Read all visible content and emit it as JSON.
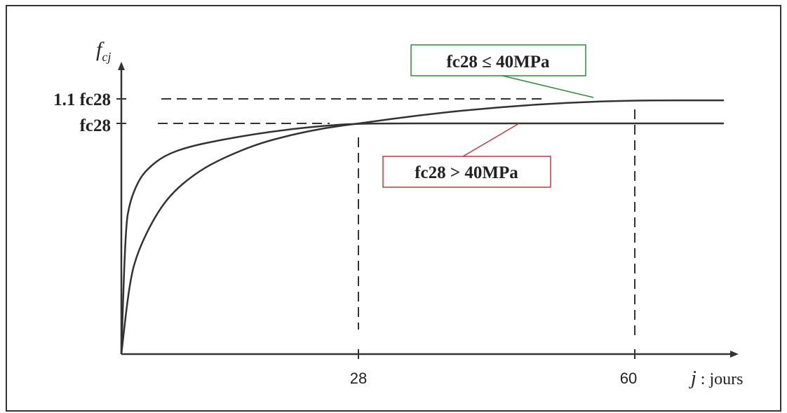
{
  "chart_data": {
    "type": "line",
    "ylabel_main": "f",
    "ylabel_sub": "cj",
    "xlabel_italic": "j",
    "xlabel_rest": " : jours",
    "ytick_labels": [
      "1.1 fc28",
      "fc28"
    ],
    "xtick_labels": [
      "28",
      "60"
    ],
    "series": [
      {
        "name": "fc28 > 40MPa",
        "color": "#333333",
        "points": [
          [
            0,
            0
          ],
          [
            0.5,
            0.55
          ],
          [
            1,
            0.66
          ],
          [
            2,
            0.75
          ],
          [
            3,
            0.8
          ],
          [
            5,
            0.86
          ],
          [
            8,
            0.9
          ],
          [
            12,
            0.93
          ],
          [
            16,
            0.955
          ],
          [
            20,
            0.975
          ],
          [
            24,
            0.99
          ],
          [
            28,
            1.0
          ],
          [
            40,
            1.0
          ],
          [
            75,
            1.0
          ]
        ]
      },
      {
        "name": "fc28 ≤ 40MPa",
        "color": "#333333",
        "points": [
          [
            0,
            0
          ],
          [
            1,
            0.32
          ],
          [
            2,
            0.45
          ],
          [
            4,
            0.6
          ],
          [
            6,
            0.7
          ],
          [
            9,
            0.79
          ],
          [
            12,
            0.85
          ],
          [
            16,
            0.91
          ],
          [
            20,
            0.95
          ],
          [
            24,
            0.98
          ],
          [
            28,
            1.0
          ],
          [
            36,
            1.04
          ],
          [
            44,
            1.07
          ],
          [
            52,
            1.09
          ],
          [
            60,
            1.1
          ],
          [
            75,
            1.1
          ]
        ]
      }
    ],
    "reference_lines": {
      "y_dashed": [
        1.1,
        1.0
      ],
      "x_dashed": [
        28,
        60
      ]
    },
    "annotations": [
      {
        "label": "fc28 ≤ 40MPa",
        "border_color": "#2e8b3a",
        "points_to": [
          58,
          1.1
        ]
      },
      {
        "label": "fc28 > 40MPa",
        "border_color": "#c0393b",
        "points_to": [
          44,
          1.0
        ]
      }
    ]
  }
}
